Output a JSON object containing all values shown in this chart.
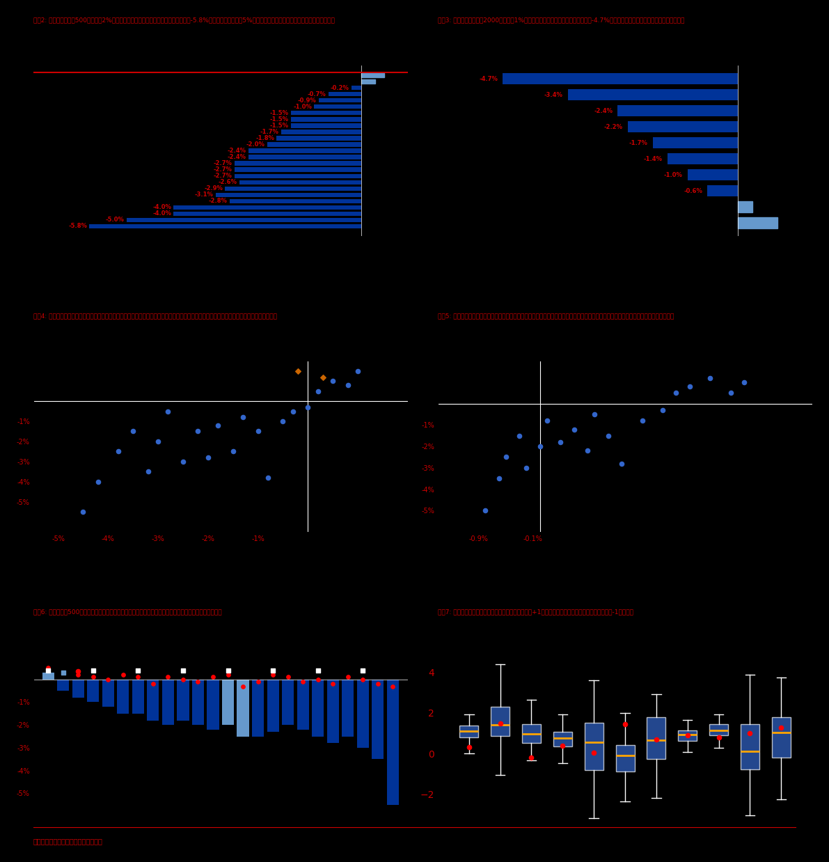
{
  "background_color": "#000000",
  "text_color": "#cc0000",
  "bar_color_blue": "#003399",
  "bar_color_light": "#6699cc",
  "title1": "图表2: 过去一周，标普500指数下跌2%，行业板块多数下跌，其中汽车与零部件领域（-5.8%），媒体板块也大跌5%，原材料、消费者服务、资本品等板块也表现不佳",
  "title2": "图表3: 代表中小盘的罗素2000指数下跌1%，行业板块也多数下跌，能源板块领跌（-4.7%），公用事业、耐用品生产等板块也表现不佳",
  "title3": "图表4: 上周表现相对较好的半导体和技术硬件板块本周上涨，而上周表现不佳的食品、媒体、时用消费品等板块本周下跌，动量因子驱动特征明显",
  "title4": "图表5: 盈利上调的半导体和技术硬件本周上涨，而盈利下调的房地产、综合金融、商业服务等板块本周表现不佳，价值因子驱动特征也较明显",
  "title5": "图表6: 上周，标普500多数板块下跌，但除房地产、综合金融、商业服务以外，多数板块盈利预期依然在上调",
  "title6": "图表7: 板块估值上，资本品板块当前估值高于历史均值+1倍标准差，电信服务板块估值低于历史均值-1倍标准差",
  "chart2_labels": [
    "",
    "",
    "-0.2%",
    "-0.7%",
    "-0.9%",
    "-1.0%",
    "-1.5%",
    "-1.5%",
    "-1.5%",
    "-1.7%",
    "-1.8%",
    "-2.0%",
    "-2.4%",
    "-2.4%",
    "-2.7%",
    "-2.7%",
    "-2.7%",
    "-2.6%",
    "-2.9%",
    "-3.1%",
    "-2.8%",
    "-4.0%",
    "-4.0%",
    "-5.0%",
    "-5.8%"
  ],
  "chart2_values": [
    0.5,
    0.3,
    -0.2,
    -0.7,
    -0.9,
    -1.0,
    -1.5,
    -1.5,
    -1.5,
    -1.7,
    -1.8,
    -2.0,
    -2.4,
    -2.4,
    -2.7,
    -2.7,
    -2.7,
    -2.6,
    -2.9,
    -3.1,
    -2.8,
    -4.0,
    -4.0,
    -5.0,
    -5.8
  ],
  "chart3_labels": [
    "-4.7%",
    "-3.4%",
    "-2.4%",
    "-2.2%",
    "-1.7%",
    "-1.4%",
    "-1.0%",
    "-0.6%",
    "",
    ""
  ],
  "chart3_values": [
    -4.7,
    -3.4,
    -2.4,
    -2.2,
    -1.7,
    -1.4,
    -1.0,
    -0.6,
    0.3,
    0.8
  ],
  "footer": "资料来源：彭博资讯，中金公司研究部"
}
